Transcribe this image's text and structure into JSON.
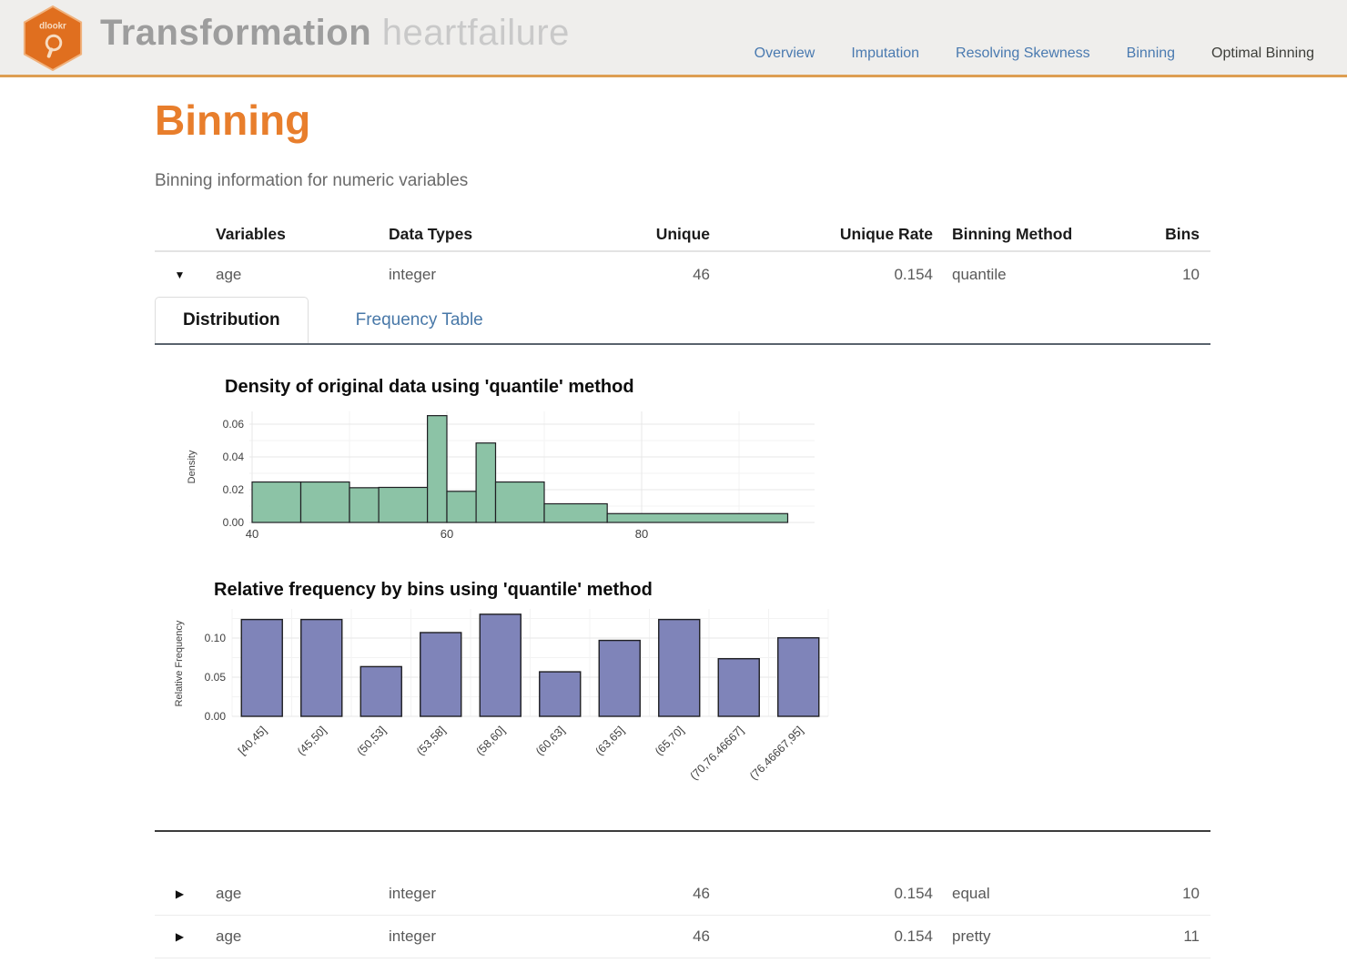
{
  "header": {
    "logo_text": "dlookr",
    "title_bold": "Transformation",
    "title_light": "heartfailure",
    "nav": [
      "Overview",
      "Imputation",
      "Resolving Skewness",
      "Binning",
      "Optimal Binning"
    ]
  },
  "page": {
    "title": "Binning",
    "subtitle": "Binning information for numeric variables"
  },
  "icons": {
    "expanded": "▼",
    "collapsed": "▶"
  },
  "table": {
    "columns": [
      "Variables",
      "Data Types",
      "Unique",
      "Unique Rate",
      "Binning Method",
      "Bins"
    ],
    "rows": [
      {
        "variable": "age",
        "data_type": "integer",
        "unique": "46",
        "unique_rate": "0.154",
        "method": "quantile",
        "bins": "10"
      },
      {
        "variable": "age",
        "data_type": "integer",
        "unique": "46",
        "unique_rate": "0.154",
        "method": "equal",
        "bins": "10"
      },
      {
        "variable": "age",
        "data_type": "integer",
        "unique": "46",
        "unique_rate": "0.154",
        "method": "pretty",
        "bins": "11"
      }
    ]
  },
  "tabs": {
    "active": "Distribution",
    "inactive": "Frequency Table"
  },
  "colors": {
    "accent_orange": "#e87e2c",
    "header_border": "#dd9e52",
    "logo_orange": "#e06f1f",
    "nav_blue": "#4a7ab0",
    "density_bar": "#8cc3a6",
    "freq_bar": "#7f84b9",
    "bar_edge": "#1f1f23",
    "grid_major": "#e7e7e7",
    "grid_minor": "#f3f3f3"
  },
  "chart_data": [
    {
      "type": "bar",
      "subtype": "histogram-density",
      "title": "Density of original data using 'quantile' method",
      "xlabel": "",
      "ylabel": "Density",
      "bin_edges": [
        40,
        45,
        50,
        53,
        58,
        60,
        63,
        65,
        70,
        76.46667,
        95
      ],
      "values": [
        0.0247,
        0.0247,
        0.0212,
        0.0214,
        0.0652,
        0.019,
        0.0485,
        0.0247,
        0.0114,
        0.0054
      ],
      "x_ticks": [
        40,
        60,
        80
      ],
      "y_ticks": [
        0.0,
        0.02,
        0.04,
        0.06
      ],
      "xlim": [
        40,
        97
      ],
      "ylim": [
        0,
        0.0675
      ],
      "grid": true,
      "legend": "none"
    },
    {
      "type": "bar",
      "subtype": "relative-frequency",
      "title": "Relative frequency by bins using 'quantile' method",
      "xlabel": "",
      "ylabel": "Relative Frequency",
      "categories": [
        "[40,45]",
        "(45,50]",
        "(50,53]",
        "(53,58]",
        "(58,60]",
        "(60,63]",
        "(63,65]",
        "(65,70]",
        "(70,76.46667]",
        "(76.46667,95]"
      ],
      "values": [
        0.1237,
        0.1237,
        0.0635,
        0.107,
        0.1304,
        0.0569,
        0.097,
        0.1237,
        0.0736,
        0.1003
      ],
      "y_ticks": [
        0.0,
        0.05,
        0.1
      ],
      "ylim": [
        0,
        0.137
      ],
      "grid": true,
      "legend": "none"
    }
  ]
}
